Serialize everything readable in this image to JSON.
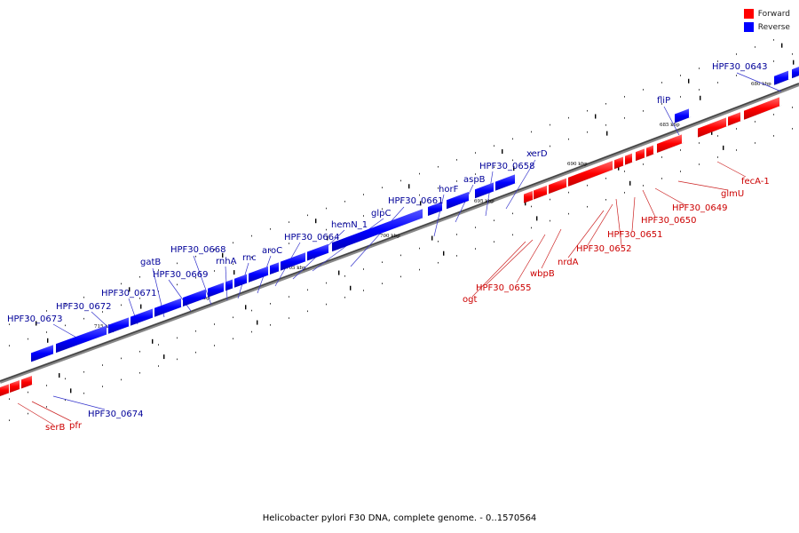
{
  "caption": "Helicobacter pylori F30 DNA, complete genome. - 0..1570564",
  "legend": [
    {
      "label": "Forward",
      "color": "#ff0000"
    },
    {
      "label": "Reverse",
      "color": "#0000ff"
    }
  ],
  "colors": {
    "forward": "#ff0000",
    "reverse": "#0000ff",
    "forward_label": "#cc0000",
    "reverse_label": "#000099"
  },
  "scale_labels": [
    "680 kbp",
    "685 kbp",
    "690 kbp",
    "695 kbp",
    "700 kbp",
    "705 kbp",
    "710 kbp",
    "715 kbp"
  ],
  "gene_labels": {
    "forward": [
      "fecA-1",
      "glmU",
      "HPF30_0649",
      "HPF30_0650",
      "HPF30_0651",
      "HPF30_0652",
      "nrdA",
      "wbpB",
      "HPF30_0655",
      "ogt",
      "serB",
      "pfr"
    ],
    "reverse": [
      "HPF30_0643",
      "fliP",
      "xerD",
      "HPF30_0658",
      "aspB",
      "horF",
      "HPF30_0661",
      "glpC",
      "hemN_1",
      "HPF30_0664",
      "aroC",
      "rnc",
      "rnhA",
      "HPF30_0668",
      "HPF30_0669",
      "gatB",
      "HPF30_0671",
      "HPF30_0672",
      "HPF30_0673",
      "HPF30_0674"
    ]
  }
}
